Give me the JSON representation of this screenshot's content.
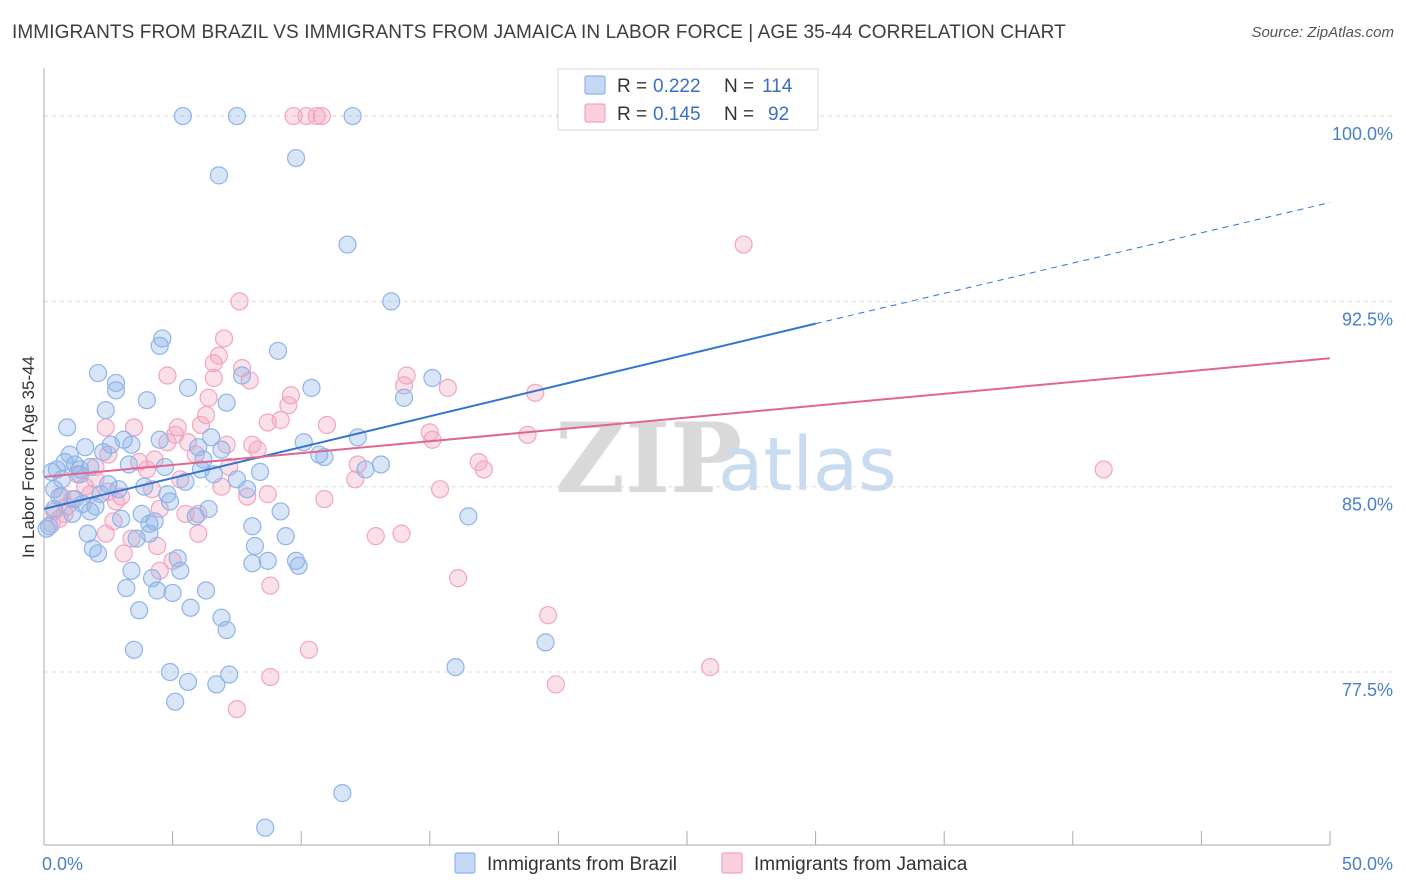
{
  "header": {
    "title": "IMMIGRANTS FROM BRAZIL VS IMMIGRANTS FROM JAMAICA IN LABOR FORCE | AGE 35-44 CORRELATION CHART",
    "source": "Source: ZipAtlas.com"
  },
  "watermark": {
    "zip": "ZIP",
    "atlas": "atlas"
  },
  "legend_box": {
    "rows": [
      {
        "r_label": "R =",
        "r_value": "0.222",
        "n_label": "N =",
        "n_value": "114",
        "color": "#8fb4e8"
      },
      {
        "r_label": "R =",
        "r_value": "0.145",
        "n_label": "N =",
        "n_value": "92",
        "color": "#f2a5bf"
      }
    ]
  },
  "bottom_legend": {
    "items": [
      {
        "label": "Immigrants from Brazil",
        "color": "#8fb4e8"
      },
      {
        "label": "Immigrants from Jamaica",
        "color": "#f2a5bf"
      }
    ]
  },
  "chart_data": {
    "type": "scatter",
    "title": "IMMIGRANTS FROM BRAZIL VS IMMIGRANTS FROM JAMAICA IN LABOR FORCE | AGE 35-44 CORRELATION CHART",
    "xlabel": "",
    "ylabel": "In Labor Force | Age 35-44",
    "xlim": [
      0,
      50
    ],
    "ylim": [
      70.5,
      101.5
    ],
    "x_tick_labels": [
      {
        "value": 0,
        "label": "0.0%"
      },
      {
        "value": 50,
        "label": "50.0%"
      }
    ],
    "y_tick_labels": [
      {
        "value": 100,
        "label": "100.0%"
      },
      {
        "value": 92.5,
        "label": "92.5%"
      },
      {
        "value": 85,
        "label": "85.0%"
      },
      {
        "value": 77.5,
        "label": "77.5%"
      }
    ],
    "grid": true,
    "legend_position": "top-center",
    "series": [
      {
        "name": "Immigrants from Brazil",
        "color": "#8fb4e8",
        "line_color": "#2f74d0",
        "trend": {
          "x0": 0,
          "y0": 84.1,
          "x1": 30,
          "y1": 91.6,
          "dash_to_x": 50,
          "dash_to_y": 96.5
        },
        "points": [
          [
            5.4,
            100.0
          ],
          [
            7.5,
            100.0
          ],
          [
            12.0,
            100.0
          ],
          [
            21.0,
            100.0
          ],
          [
            9.8,
            98.3
          ],
          [
            6.8,
            97.6
          ],
          [
            11.8,
            94.8
          ],
          [
            13.5,
            92.5
          ],
          [
            4.6,
            91.0
          ],
          [
            4.5,
            90.7
          ],
          [
            9.1,
            90.5
          ],
          [
            2.1,
            89.6
          ],
          [
            7.7,
            89.5
          ],
          [
            10.4,
            89.0
          ],
          [
            2.8,
            89.2
          ],
          [
            15.1,
            89.4
          ],
          [
            2.8,
            88.9
          ],
          [
            4.0,
            88.5
          ],
          [
            5.6,
            89.0
          ],
          [
            2.4,
            88.1
          ],
          [
            7.1,
            88.4
          ],
          [
            14.0,
            88.6
          ],
          [
            0.9,
            87.4
          ],
          [
            6.5,
            87.0
          ],
          [
            12.2,
            87.0
          ],
          [
            4.5,
            86.9
          ],
          [
            3.1,
            86.9
          ],
          [
            3.4,
            86.7
          ],
          [
            2.6,
            86.7
          ],
          [
            6.0,
            86.6
          ],
          [
            6.9,
            86.5
          ],
          [
            10.7,
            86.3
          ],
          [
            10.9,
            86.2
          ],
          [
            1.0,
            86.3
          ],
          [
            0.5,
            85.7
          ],
          [
            1.2,
            85.9
          ],
          [
            1.4,
            85.7
          ],
          [
            1.8,
            85.8
          ],
          [
            3.3,
            85.9
          ],
          [
            4.7,
            85.8
          ],
          [
            6.1,
            85.7
          ],
          [
            6.6,
            85.5
          ],
          [
            12.5,
            85.7
          ],
          [
            8.4,
            85.6
          ],
          [
            0.7,
            85.3
          ],
          [
            1.4,
            85.5
          ],
          [
            0.4,
            84.9
          ],
          [
            0.6,
            84.6
          ],
          [
            3.9,
            85.0
          ],
          [
            2.2,
            84.7
          ],
          [
            4.9,
            84.4
          ],
          [
            1.5,
            84.3
          ],
          [
            2.0,
            84.2
          ],
          [
            1.8,
            84.0
          ],
          [
            0.4,
            84.1
          ],
          [
            3.8,
            83.9
          ],
          [
            4.1,
            83.5
          ],
          [
            0.1,
            83.3
          ],
          [
            8.1,
            83.4
          ],
          [
            4.3,
            83.6
          ],
          [
            16.5,
            83.8
          ],
          [
            1.7,
            83.1
          ],
          [
            4.1,
            83.1
          ],
          [
            1.9,
            82.5
          ],
          [
            2.1,
            82.3
          ],
          [
            8.2,
            82.6
          ],
          [
            5.2,
            82.1
          ],
          [
            8.1,
            81.9
          ],
          [
            8.7,
            82.0
          ],
          [
            9.8,
            82.0
          ],
          [
            9.9,
            81.8
          ],
          [
            3.4,
            81.6
          ],
          [
            5.3,
            81.6
          ],
          [
            4.2,
            81.3
          ],
          [
            3.2,
            80.9
          ],
          [
            4.4,
            80.8
          ],
          [
            6.3,
            80.8
          ],
          [
            5.0,
            80.7
          ],
          [
            3.7,
            80.0
          ],
          [
            5.7,
            80.1
          ],
          [
            6.9,
            79.7
          ],
          [
            7.1,
            79.2
          ],
          [
            19.5,
            78.7
          ],
          [
            3.5,
            78.4
          ],
          [
            16.0,
            77.7
          ],
          [
            4.9,
            77.5
          ],
          [
            7.2,
            77.4
          ],
          [
            5.6,
            77.1
          ],
          [
            6.7,
            77.0
          ],
          [
            5.1,
            76.3
          ],
          [
            11.6,
            72.6
          ],
          [
            8.6,
            71.2
          ],
          [
            0.2,
            83.4
          ],
          [
            1.2,
            84.5
          ],
          [
            2.5,
            85.1
          ],
          [
            7.5,
            85.3
          ],
          [
            9.2,
            84.0
          ],
          [
            3.0,
            83.7
          ],
          [
            5.5,
            85.2
          ],
          [
            10.1,
            86.8
          ],
          [
            0.8,
            86.0
          ],
          [
            1.6,
            86.6
          ],
          [
            2.9,
            84.9
          ],
          [
            4.8,
            84.7
          ],
          [
            6.2,
            86.1
          ],
          [
            7.9,
            84.9
          ],
          [
            9.4,
            83.0
          ],
          [
            13.1,
            85.9
          ],
          [
            0.3,
            85.6
          ],
          [
            1.1,
            83.9
          ],
          [
            2.3,
            86.4
          ],
          [
            3.6,
            82.9
          ],
          [
            5.9,
            83.8
          ],
          [
            6.4,
            84.1
          ]
        ]
      },
      {
        "name": "Immigrants from Jamaica",
        "color": "#f2a5bf",
        "line_color": "#e0668f",
        "trend": {
          "x0": 0,
          "y0": 85.4,
          "x1": 50,
          "y1": 90.2
        },
        "points": [
          [
            9.7,
            100.0
          ],
          [
            10.2,
            100.0
          ],
          [
            10.6,
            100.0
          ],
          [
            10.8,
            100.0
          ],
          [
            20.3,
            100.0
          ],
          [
            27.2,
            94.8
          ],
          [
            7.6,
            92.5
          ],
          [
            7.0,
            91.0
          ],
          [
            6.8,
            90.3
          ],
          [
            6.6,
            90.0
          ],
          [
            7.7,
            89.8
          ],
          [
            4.8,
            89.5
          ],
          [
            6.6,
            89.4
          ],
          [
            8.0,
            89.3
          ],
          [
            14.1,
            89.5
          ],
          [
            14.0,
            89.1
          ],
          [
            15.7,
            89.0
          ],
          [
            9.6,
            88.7
          ],
          [
            19.1,
            88.8
          ],
          [
            6.4,
            88.6
          ],
          [
            9.5,
            88.3
          ],
          [
            6.3,
            87.9
          ],
          [
            9.2,
            87.7
          ],
          [
            8.7,
            87.6
          ],
          [
            5.2,
            87.4
          ],
          [
            6.1,
            87.5
          ],
          [
            11.0,
            87.5
          ],
          [
            2.4,
            87.4
          ],
          [
            3.5,
            87.4
          ],
          [
            5.1,
            87.1
          ],
          [
            15.0,
            87.2
          ],
          [
            15.1,
            86.9
          ],
          [
            18.8,
            87.1
          ],
          [
            5.6,
            86.8
          ],
          [
            4.8,
            86.8
          ],
          [
            7.1,
            86.7
          ],
          [
            8.1,
            86.7
          ],
          [
            2.5,
            86.3
          ],
          [
            4.3,
            86.1
          ],
          [
            5.9,
            86.3
          ],
          [
            12.2,
            85.9
          ],
          [
            16.9,
            86.0
          ],
          [
            17.1,
            85.7
          ],
          [
            2.0,
            85.8
          ],
          [
            4.0,
            85.7
          ],
          [
            7.2,
            85.8
          ],
          [
            41.2,
            85.7
          ],
          [
            12.1,
            85.3
          ],
          [
            1.6,
            85.0
          ],
          [
            2.5,
            84.8
          ],
          [
            1.8,
            84.7
          ],
          [
            3.0,
            84.6
          ],
          [
            7.9,
            84.6
          ],
          [
            8.7,
            84.7
          ],
          [
            10.9,
            84.5
          ],
          [
            15.4,
            84.9
          ],
          [
            1.1,
            84.5
          ],
          [
            2.8,
            84.4
          ],
          [
            0.9,
            84.2
          ],
          [
            0.4,
            84.0
          ],
          [
            0.8,
            83.9
          ],
          [
            5.5,
            83.9
          ],
          [
            6.0,
            83.9
          ],
          [
            4.5,
            84.1
          ],
          [
            0.6,
            83.7
          ],
          [
            0.3,
            83.5
          ],
          [
            2.4,
            83.1
          ],
          [
            6.0,
            83.1
          ],
          [
            12.9,
            83.0
          ],
          [
            13.9,
            83.1
          ],
          [
            4.4,
            82.6
          ],
          [
            3.1,
            82.3
          ],
          [
            5.0,
            82.0
          ],
          [
            4.5,
            81.6
          ],
          [
            16.1,
            81.3
          ],
          [
            8.8,
            81.0
          ],
          [
            19.6,
            79.8
          ],
          [
            10.3,
            78.4
          ],
          [
            25.9,
            77.7
          ],
          [
            8.8,
            77.3
          ],
          [
            19.9,
            77.0
          ],
          [
            7.5,
            76.0
          ],
          [
            2.0,
            85.3
          ],
          [
            3.7,
            86.0
          ],
          [
            5.3,
            85.3
          ],
          [
            6.9,
            85.0
          ],
          [
            8.3,
            86.5
          ],
          [
            1.3,
            85.5
          ],
          [
            2.7,
            83.6
          ],
          [
            4.2,
            84.9
          ],
          [
            0.7,
            84.6
          ],
          [
            3.4,
            82.9
          ]
        ]
      }
    ]
  }
}
